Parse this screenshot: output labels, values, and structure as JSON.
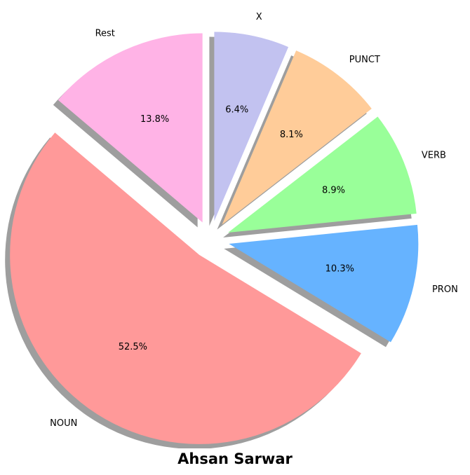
{
  "chart_data": {
    "type": "pie",
    "title": "Ahsan Sarwar",
    "start_angle_deg": 90,
    "shadow": true,
    "slices": [
      {
        "label": "Rest",
        "value": 13.8,
        "pct_label": "13.8%",
        "color": "#ffb3e6",
        "exploded": true
      },
      {
        "label": "NOUN",
        "value": 52.5,
        "pct_label": "52.5%",
        "color": "#ff9999",
        "exploded": true
      },
      {
        "label": "PRON",
        "value": 10.3,
        "pct_label": "10.3%",
        "color": "#66b3ff",
        "exploded": true
      },
      {
        "label": "VERB",
        "value": 8.9,
        "pct_label": "8.9%",
        "color": "#99ff99",
        "exploded": true
      },
      {
        "label": "PUNCT",
        "value": 8.1,
        "pct_label": "8.1%",
        "color": "#ffcc99",
        "exploded": true
      },
      {
        "label": "X",
        "value": 6.4,
        "pct_label": "6.4%",
        "color": "#c2c2f0",
        "exploded": true
      }
    ]
  }
}
